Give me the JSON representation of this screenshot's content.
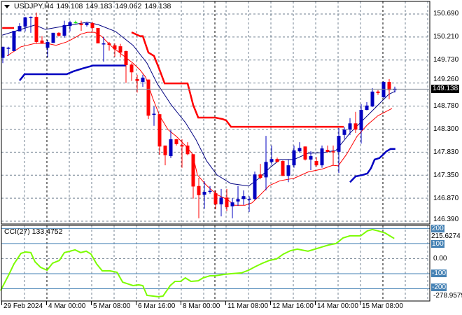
{
  "header": {
    "symbol": "USDJPY,H4",
    "open": "149.108",
    "high": "149.183",
    "low": "149.062",
    "close": "149.138"
  },
  "current_price": "149.138",
  "price_axis": [
    "150.690",
    "150.210",
    "149.730",
    "149.260",
    "148.780",
    "148.300",
    "147.830",
    "147.350",
    "146.870",
    "146.390"
  ],
  "cci": {
    "label": "CCI(27) 133.4752",
    "axis_top": "215.6274",
    "axis_bottom": "-278.9579",
    "levels": [
      "200",
      "100",
      "0.00",
      "-100",
      "-200"
    ],
    "range": [
      -278.9579,
      215.6274
    ]
  },
  "time_axis": [
    "29 Feb 2024",
    "4 Mar 00:00",
    "5 Mar 08:00",
    "6 Mar 16:00",
    "8 Mar 00:00",
    "11 Mar 08:00",
    "12 Mar 16:00",
    "14 Mar 00:00",
    "15 Mar 08:00"
  ],
  "colors": {
    "bull": "#0000c0",
    "bear": "#ff0000",
    "doji": "#00e000",
    "ma": "#000080",
    "envelope": "#ff0000",
    "cci": "#7cfc00",
    "level": "#4682b4",
    "grid": "#708090"
  },
  "chart_data": {
    "type": "candlestick",
    "title": "USDJPY,H4",
    "ylim": [
      146.39,
      150.69
    ],
    "candles": [
      [
        149.78,
        150.01,
        149.67,
        150.01
      ],
      [
        149.98,
        150.01,
        149.82,
        149.99
      ],
      [
        149.92,
        150.34,
        149.92,
        150.34
      ],
      [
        150.33,
        150.5,
        150.33,
        150.44
      ],
      [
        150.43,
        150.63,
        150.33,
        150.62
      ],
      [
        150.61,
        150.64,
        150.3,
        150.63
      ],
      [
        150.63,
        150.72,
        150.07,
        150.11
      ],
      [
        150.14,
        150.23,
        150.07,
        150.09
      ],
      [
        149.99,
        150.15,
        149.79,
        150.11
      ],
      [
        150.09,
        150.3,
        150.09,
        150.3
      ],
      [
        150.3,
        150.31,
        150.22,
        150.24
      ],
      [
        150.24,
        150.55,
        150.2,
        150.46
      ],
      [
        150.44,
        150.55,
        150.33,
        150.52
      ],
      [
        150.52,
        150.55,
        150.49,
        150.52
      ],
      [
        150.49,
        150.55,
        150.34,
        150.46
      ],
      [
        150.46,
        150.53,
        150.43,
        150.5
      ],
      [
        150.5,
        150.53,
        150.33,
        150.4
      ],
      [
        150.4,
        150.4,
        150.08,
        150.08
      ],
      [
        150.07,
        150.21,
        149.7,
        150.08
      ],
      [
        150.08,
        150.11,
        149.93,
        150.05
      ],
      [
        150.04,
        150.08,
        149.8,
        149.96
      ],
      [
        150.02,
        150.07,
        149.79,
        149.89
      ],
      [
        149.92,
        149.93,
        149.26,
        149.63
      ],
      [
        149.64,
        149.67,
        149.3,
        149.48
      ],
      [
        149.34,
        149.43,
        149.06,
        149.3
      ],
      [
        149.28,
        149.43,
        149.18,
        149.37
      ],
      [
        149.33,
        149.33,
        148.51,
        148.58
      ],
      [
        148.6,
        148.77,
        148.37,
        148.62
      ],
      [
        148.61,
        148.61,
        147.77,
        147.94
      ],
      [
        147.96,
        147.96,
        147.55,
        147.76
      ],
      [
        147.74,
        148.28,
        147.7,
        148.09
      ],
      [
        148.09,
        148.1,
        147.96,
        147.99
      ],
      [
        147.97,
        148.09,
        147.5,
        147.94
      ],
      [
        147.96,
        148.03,
        147.76,
        147.78
      ],
      [
        147.78,
        147.78,
        146.86,
        147.11
      ],
      [
        147.12,
        147.29,
        146.45,
        146.93
      ],
      [
        146.94,
        147.22,
        146.65,
        147.0
      ],
      [
        147.0,
        147.12,
        146.96,
        147.02
      ],
      [
        146.97,
        147.03,
        146.64,
        146.74
      ],
      [
        146.74,
        147.06,
        146.49,
        146.88
      ],
      [
        146.88,
        147.06,
        146.6,
        146.68
      ],
      [
        146.7,
        146.87,
        146.45,
        146.78
      ],
      [
        146.8,
        147.12,
        146.71,
        146.85
      ],
      [
        146.85,
        147.03,
        146.73,
        146.91
      ],
      [
        146.83,
        146.91,
        146.58,
        146.85
      ],
      [
        146.85,
        147.42,
        146.83,
        147.36
      ],
      [
        147.36,
        147.58,
        147.26,
        147.29
      ],
      [
        147.3,
        148.16,
        147.03,
        147.62
      ],
      [
        147.62,
        147.96,
        147.56,
        147.68
      ],
      [
        147.68,
        147.71,
        147.61,
        147.62
      ],
      [
        147.64,
        147.65,
        147.33,
        147.33
      ],
      [
        147.33,
        147.67,
        147.2,
        147.55
      ],
      [
        147.55,
        147.96,
        147.5,
        147.86
      ],
      [
        147.84,
        148.03,
        147.81,
        147.91
      ],
      [
        147.94,
        147.94,
        147.65,
        147.67
      ],
      [
        147.67,
        147.84,
        147.45,
        147.74
      ],
      [
        147.64,
        147.72,
        147.52,
        147.55
      ],
      [
        147.55,
        147.96,
        147.5,
        147.9
      ],
      [
        147.87,
        147.96,
        147.81,
        147.83
      ],
      [
        147.84,
        147.96,
        147.55,
        147.83
      ],
      [
        147.83,
        148.32,
        147.39,
        148.16
      ],
      [
        148.18,
        148.34,
        148.1,
        148.29
      ],
      [
        148.29,
        148.53,
        148.18,
        148.42
      ],
      [
        148.42,
        148.66,
        148.22,
        148.29
      ],
      [
        148.28,
        148.82,
        148.0,
        148.7
      ],
      [
        148.7,
        148.86,
        148.69,
        148.79
      ],
      [
        148.77,
        149.15,
        148.76,
        149.08
      ],
      [
        149.08,
        149.11,
        149.01,
        149.05
      ],
      [
        148.96,
        149.29,
        148.95,
        149.28
      ],
      [
        149.28,
        149.34,
        148.92,
        149.11
      ],
      [
        149.108,
        149.183,
        149.062,
        149.138
      ]
    ],
    "ma_line": [
      [
        -0.1,
        150.25
      ],
      [
        5.75,
        150.46
      ],
      [
        7.6,
        150.37
      ],
      [
        12,
        150.46
      ],
      [
        15.1,
        150.52
      ],
      [
        17,
        150.47
      ],
      [
        20.1,
        150.33
      ],
      [
        23.25,
        150.04
      ],
      [
        25.75,
        149.67
      ],
      [
        27.6,
        149.24
      ],
      [
        30.1,
        148.8
      ],
      [
        32.6,
        148.44
      ],
      [
        34.5,
        148.08
      ],
      [
        36.4,
        147.64
      ],
      [
        38.25,
        147.35
      ],
      [
        40.75,
        147.17
      ],
      [
        43.9,
        147.12
      ],
      [
        45.75,
        147.28
      ],
      [
        47.6,
        147.49
      ],
      [
        49.5,
        147.67
      ],
      [
        52,
        147.67
      ],
      [
        54.5,
        147.8
      ],
      [
        57,
        147.81
      ],
      [
        59.5,
        147.86
      ],
      [
        62,
        148.22
      ],
      [
        64.5,
        148.51
      ],
      [
        67,
        148.8
      ],
      [
        68.9,
        149.02
      ],
      [
        70.1,
        149.09
      ]
    ],
    "lower_line": [
      [
        0.75,
        149.82
      ],
      [
        3.25,
        150.01
      ],
      [
        5.75,
        150.08
      ],
      [
        7.9,
        150.08
      ],
      [
        9.5,
        150.04
      ],
      [
        11.4,
        150.11
      ],
      [
        12.6,
        150.18
      ],
      [
        13.9,
        150.27
      ],
      [
        15.1,
        150.31
      ],
      [
        16.4,
        150.31
      ],
      [
        17.6,
        150.23
      ],
      [
        19.5,
        150.01
      ],
      [
        23.25,
        149.67
      ],
      [
        24.5,
        149.53
      ],
      [
        25.5,
        149.38
      ],
      [
        26.75,
        148.95
      ],
      [
        28,
        148.58
      ],
      [
        29.5,
        148.29
      ],
      [
        31,
        148.15
      ],
      [
        32.6,
        147.96
      ],
      [
        33.9,
        147.78
      ],
      [
        34.75,
        147.35
      ],
      [
        36.4,
        147.13
      ],
      [
        38.25,
        146.94
      ],
      [
        40.1,
        146.84
      ],
      [
        41.4,
        146.72
      ],
      [
        43.25,
        146.72
      ],
      [
        44.5,
        146.77
      ],
      [
        45.75,
        146.91
      ],
      [
        47.6,
        147.13
      ],
      [
        49.5,
        147.23
      ],
      [
        52,
        147.28
      ],
      [
        54.5,
        147.41
      ],
      [
        57,
        147.47
      ],
      [
        58.9,
        147.55
      ],
      [
        59.9,
        147.54
      ],
      [
        61.4,
        147.78
      ],
      [
        63.25,
        148.15
      ],
      [
        65.1,
        148.39
      ],
      [
        67,
        148.58
      ],
      [
        69.5,
        148.73
      ]
    ],
    "red_stop": [
      [
        [
          -0.1,
          150.4
        ],
        [
          2,
          150.4
        ]
      ],
      [
        [
          23,
          150.31
        ],
        [
          24.5,
          150.23
        ],
        [
          25,
          150.23
        ],
        [
          26,
          149.89
        ],
        [
          27,
          149.82
        ],
        [
          28,
          149.53
        ],
        [
          28.9,
          149.25
        ],
        [
          33,
          149.25
        ],
        [
          34,
          148.8
        ],
        [
          34.9,
          148.54
        ],
        [
          37.9,
          148.54
        ],
        [
          39.25,
          148.51
        ],
        [
          39.9,
          148.48
        ],
        [
          40.75,
          148.35
        ],
        [
          60.9,
          148.35
        ]
      ]
    ],
    "blue_stop": [
      [
        [
          3,
          149.31
        ],
        [
          3.9,
          149.44
        ],
        [
          11.4,
          149.44
        ],
        [
          12.6,
          149.5
        ],
        [
          14.25,
          149.56
        ],
        [
          16.1,
          149.62
        ],
        [
          22,
          149.62
        ]
      ],
      [
        [
          62,
          147.2
        ],
        [
          63,
          147.32
        ],
        [
          64.25,
          147.35
        ],
        [
          65.1,
          147.38
        ],
        [
          65.75,
          147.49
        ],
        [
          66.4,
          147.67
        ],
        [
          67.25,
          147.7
        ],
        [
          68,
          147.78
        ],
        [
          68.5,
          147.84
        ],
        [
          69.25,
          147.89
        ],
        [
          70.1,
          147.89
        ]
      ]
    ],
    "cci_values": [
      [
        -0.4,
        -212
      ],
      [
        1.1,
        -105
      ],
      [
        2,
        -35
      ],
      [
        3.25,
        35
      ],
      [
        4.1,
        44
      ],
      [
        5,
        40
      ],
      [
        5.75,
        -21
      ],
      [
        6.75,
        -58
      ],
      [
        7.9,
        -77
      ],
      [
        8.9,
        -30
      ],
      [
        10.1,
        -12
      ],
      [
        11,
        40
      ],
      [
        12,
        49
      ],
      [
        12.9,
        58
      ],
      [
        13.9,
        40
      ],
      [
        14.9,
        49
      ],
      [
        15.75,
        30
      ],
      [
        16.75,
        -35
      ],
      [
        17.75,
        -81
      ],
      [
        19.1,
        -81
      ],
      [
        20.4,
        -91
      ],
      [
        21.4,
        -156
      ],
      [
        23.25,
        -179
      ],
      [
        24.25,
        -174
      ],
      [
        25,
        -179
      ],
      [
        25.75,
        -244
      ],
      [
        27.75,
        -253
      ],
      [
        28.6,
        -249
      ],
      [
        29.9,
        -179
      ],
      [
        30.75,
        -151
      ],
      [
        31.75,
        -151
      ],
      [
        32.6,
        -128
      ],
      [
        33.6,
        -151
      ],
      [
        34.9,
        -147
      ],
      [
        35.75,
        -128
      ],
      [
        37,
        -114
      ],
      [
        37.9,
        -114
      ],
      [
        39.5,
        -105
      ],
      [
        40.75,
        -100
      ],
      [
        42.6,
        -95
      ],
      [
        43.9,
        -77
      ],
      [
        45.1,
        -53
      ],
      [
        46.4,
        -30
      ],
      [
        47.6,
        -12
      ],
      [
        48.9,
        -2
      ],
      [
        50.1,
        30
      ],
      [
        51.4,
        53
      ],
      [
        52.6,
        63
      ],
      [
        54.5,
        49
      ],
      [
        55.75,
        63
      ],
      [
        57,
        77
      ],
      [
        58.25,
        91
      ],
      [
        59.5,
        100
      ],
      [
        60.75,
        137
      ],
      [
        62,
        151
      ],
      [
        63.9,
        151
      ],
      [
        65.1,
        184
      ],
      [
        66,
        193
      ],
      [
        67,
        184
      ],
      [
        68.25,
        170
      ],
      [
        69.1,
        151
      ],
      [
        69.9,
        133.5
      ]
    ]
  }
}
